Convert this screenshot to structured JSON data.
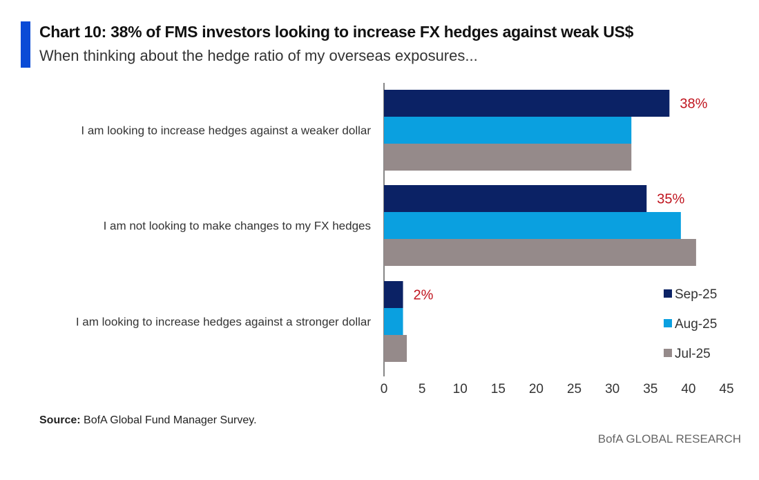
{
  "header": {
    "title": "Chart 10: 38% of FMS investors looking to increase FX hedges against weak US$",
    "subtitle": "When thinking about the hedge ratio of my overseas exposures..."
  },
  "footer": {
    "source_label": "Source:",
    "source_text": "BofA Global Fund Manager Survey.",
    "brand": "BofA GLOBAL RESEARCH"
  },
  "colors": {
    "accent": "#0a4bd6",
    "sep25": "#0b2265",
    "aug25": "#0aa0e0",
    "jul25": "#958a8a",
    "data_label": "#c0141e"
  },
  "chart_data": {
    "type": "bar",
    "orientation": "horizontal",
    "categories": [
      "I am looking to increase hedges against a weaker dollar",
      "I am not looking to make changes to my FX hedges",
      "I am looking to increase hedges against a stronger dollar"
    ],
    "series": [
      {
        "name": "Sep-25",
        "values": [
          37.5,
          34.5,
          2.5
        ],
        "color": "#0b2265",
        "labels": [
          "38%",
          "35%",
          "2%"
        ]
      },
      {
        "name": "Aug-25",
        "values": [
          32.5,
          39.0,
          2.5
        ],
        "color": "#0aa0e0"
      },
      {
        "name": "Jul-25",
        "values": [
          32.5,
          41.0,
          3.0
        ],
        "color": "#958a8a"
      }
    ],
    "xlim": [
      0,
      45
    ],
    "xticks": [
      "0",
      "5",
      "10",
      "15",
      "20",
      "25",
      "30",
      "35",
      "40",
      "45"
    ],
    "grid": false,
    "legend_position": "bottom-right",
    "xlabel": "",
    "ylabel": ""
  }
}
